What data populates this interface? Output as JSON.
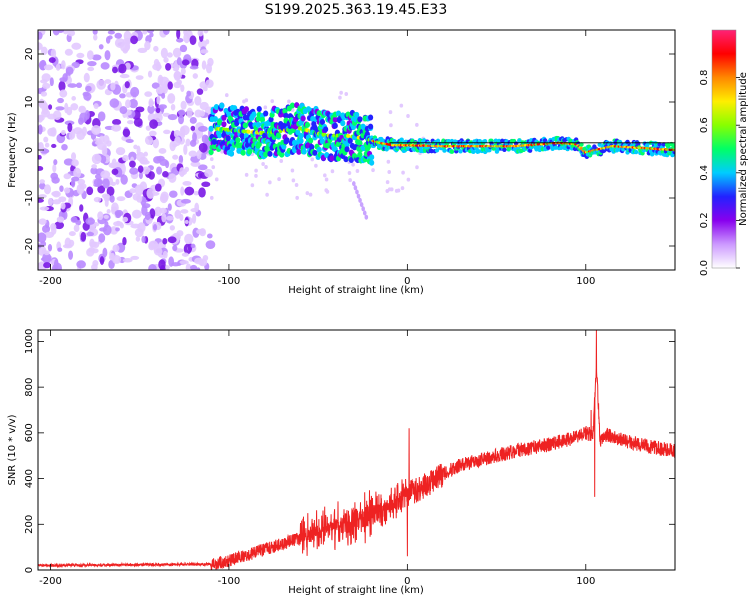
{
  "title": "S199.2025.363.19.45.E33",
  "chart_data": [
    {
      "type": "heatmap",
      "xlabel": "Height of straight line (km)",
      "ylabel": "Frequency (Hz)",
      "xlim": [
        -207,
        150
      ],
      "ylim": [
        -25,
        25
      ],
      "xticks": [
        -200,
        -100,
        0,
        100
      ],
      "xtick_labels": [
        "-200",
        "-100",
        "0",
        "100"
      ],
      "yticks": [
        -20,
        -10,
        0,
        10,
        20
      ],
      "ytick_labels": [
        "-20",
        "-10",
        "0",
        "10",
        "20"
      ],
      "colorbar": {
        "label": "Normalized spectral amplitude",
        "range": [
          0,
          1
        ],
        "ticks": [
          0,
          0.2,
          0.4,
          0.6,
          0.8
        ],
        "tick_labels": [
          "0.0",
          "0.2",
          "0.4",
          "0.6",
          "0.8"
        ],
        "colors": [
          "#ffffff",
          "#cc99ff",
          "#8800ee",
          "#2222ff",
          "#00ccff",
          "#00ff66",
          "#88ff00",
          "#ffee00",
          "#ff8800",
          "#ff0000",
          "#ff2277"
        ]
      },
      "description_features": {
        "noise_region_km": [
          -207,
          -110
        ],
        "signal_start_km": -110,
        "ridge_frequency_hz": [
          [
            -110,
            4.5
          ],
          [
            -95,
            4
          ],
          [
            -80,
            3.5
          ],
          [
            -60,
            4.5
          ],
          [
            -45,
            3
          ],
          [
            -35,
            3
          ],
          [
            -25,
            2.5
          ],
          [
            -15,
            1.5
          ],
          [
            -8,
            1
          ],
          [
            0,
            1
          ],
          [
            20,
            0.8
          ],
          [
            60,
            0.8
          ],
          [
            85,
            1.5
          ],
          [
            95,
            1.2
          ],
          [
            100,
            -0.5
          ],
          [
            115,
            0.8
          ],
          [
            150,
            0
          ]
        ],
        "reference_line_hz": 1.5,
        "scatter_streak": [
          [
            -30,
            -7
          ],
          [
            -23,
            -14
          ]
        ]
      }
    },
    {
      "type": "line",
      "xlabel": "Height of straight line (km)",
      "ylabel": "SNR (10 * v/v)",
      "xlim": [
        -207,
        150
      ],
      "ylim": [
        0,
        1050
      ],
      "xticks": [
        -200,
        -100,
        0,
        100
      ],
      "xtick_labels": [
        "-200",
        "-100",
        "0",
        "100"
      ],
      "yticks": [
        0,
        200,
        400,
        600,
        800,
        1000
      ],
      "ytick_labels": [
        "0",
        "200",
        "400",
        "600",
        "800",
        "1000"
      ],
      "color": "#ee2222",
      "trend": {
        "x": [
          -207,
          -110,
          -100,
          -80,
          -60,
          -40,
          -25,
          -15,
          -5,
          0,
          10,
          20,
          30,
          40,
          60,
          80,
          95,
          100,
          104,
          106,
          108,
          112,
          120,
          135,
          150
        ],
        "y": [
          20,
          25,
          40,
          90,
          140,
          190,
          220,
          260,
          300,
          330,
          370,
          420,
          460,
          480,
          520,
          550,
          580,
          600,
          590,
          900,
          560,
          590,
          570,
          540,
          520
        ]
      },
      "spikes": [
        {
          "x": 1,
          "y": 620
        },
        {
          "x": 0,
          "y": 60
        },
        {
          "x": 106,
          "y": 1050
        },
        {
          "x": 105,
          "y": 320
        },
        {
          "x": 103,
          "y": 700
        }
      ]
    }
  ]
}
